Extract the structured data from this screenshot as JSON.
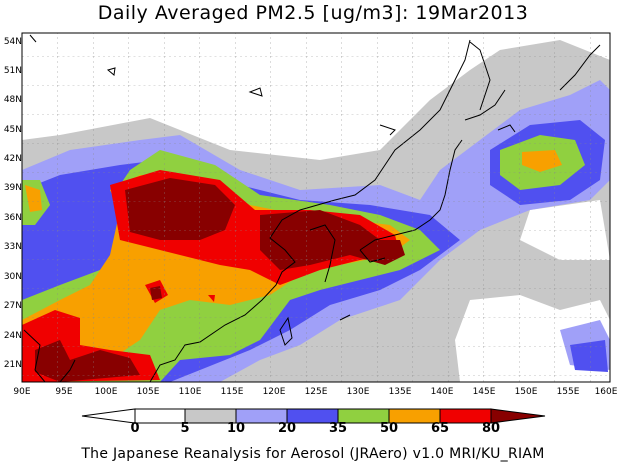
{
  "title": "Daily Averaged PM2.5 [ug/m3]: 19Mar2013",
  "footer": "The Japanese Reanalysis for Aerosol (JRAero) v1.0 MRI/KU_RIAM",
  "map": {
    "lon_range": [
      90,
      160
    ],
    "lat_range": [
      20,
      55
    ],
    "lat_ticks": [
      "54N",
      "51N",
      "48N",
      "45N",
      "42N",
      "39N",
      "36N",
      "33N",
      "30N",
      "27N",
      "24N",
      "21N"
    ],
    "lon_ticks": [
      "90E",
      "95E",
      "100E",
      "105E",
      "110E",
      "115E",
      "120E",
      "125E",
      "130E",
      "135E",
      "140E",
      "145E",
      "150E",
      "155E",
      "160E"
    ]
  },
  "colorbar": {
    "levels": [
      "0",
      "5",
      "10",
      "20",
      "35",
      "50",
      "65",
      "80"
    ],
    "colors": [
      "#ffffff",
      "#c8c8c8",
      "#a0a0f8",
      "#5050f0",
      "#90d040",
      "#f8a000",
      "#f00000",
      "#880000"
    ]
  }
}
